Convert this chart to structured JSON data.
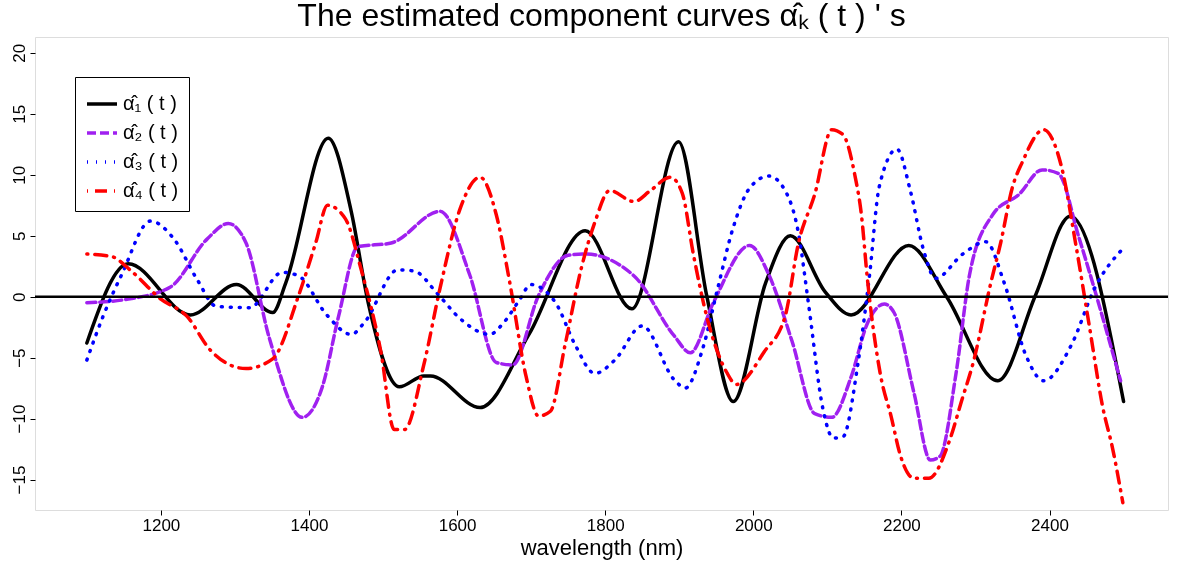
{
  "chart_data": {
    "type": "line",
    "title": "The estimated component curves α̂ₖ ( t ) ' s",
    "xlabel": "wavelength (nm)",
    "xlim": [
      1030,
      2560
    ],
    "ylim": [
      -17.5,
      21.3
    ],
    "xticks": [
      1200,
      1400,
      1600,
      1800,
      2000,
      2200,
      2400
    ],
    "yticks": [
      -15,
      -10,
      -5,
      0,
      5,
      10,
      15,
      20
    ],
    "grid": false,
    "legend": "top left",
    "marker": "none",
    "ref_lines": [
      {
        "axis": "y",
        "value": 0,
        "color": "#000000",
        "line_style": "solid"
      }
    ],
    "series": [
      {
        "name": "α̂₁ ( t )",
        "color": "#000000",
        "line_style": "solid",
        "x": [
          1100,
          1156,
          1240,
          1302,
          1351,
          1369,
          1426,
          1457,
          1480,
          1522,
          1555,
          1564,
          1631,
          1697,
          1773,
          1836,
          1899,
          1937,
          1973,
          2017,
          2050,
          2097,
          2132,
          2210,
          2261,
          2330,
          2381,
          2428,
          2500
        ],
        "values": [
          -3.8,
          2.7,
          -1.5,
          1.0,
          -1.3,
          1.2,
          13.0,
          7.0,
          -0.5,
          -7.4,
          -6.5,
          -6.5,
          -9.1,
          -3.1,
          5.4,
          -1.0,
          12.7,
          0.1,
          -8.6,
          1.2,
          5.0,
          0.4,
          -1.5,
          4.2,
          0.0,
          -6.9,
          0.1,
          6.6,
          -8.6
        ]
      },
      {
        "name": "α̂₂ ( t )",
        "color": "#a020f0",
        "line_style": "dashed",
        "x": [
          1100,
          1156,
          1213,
          1262,
          1291,
          1315,
          1346,
          1391,
          1418,
          1440,
          1466,
          1511,
          1577,
          1617,
          1653,
          1675,
          1710,
          1750,
          1773,
          1839,
          1893,
          1915,
          1946,
          1995,
          2021,
          2052,
          2083,
          2106,
          2132,
          2154,
          2177,
          2190,
          2217,
          2239,
          2252,
          2274,
          2292,
          2323,
          2359,
          2390,
          2412,
          2439,
          2496
        ],
        "values": [
          -0.5,
          -0.2,
          0.8,
          4.7,
          6.0,
          4.4,
          -3.3,
          -9.9,
          -7.4,
          -1.6,
          4.1,
          4.4,
          7.0,
          1.8,
          -5.4,
          -5.6,
          0.1,
          3.4,
          3.5,
          1.7,
          -3.2,
          -4.6,
          -0.5,
          4.2,
          1.8,
          -3.6,
          -9.6,
          -9.9,
          -6.6,
          -2.2,
          -0.6,
          -1.3,
          -7.9,
          -13.4,
          -13.1,
          -6.2,
          1.8,
          6.7,
          8.4,
          10.4,
          10.1,
          5.0,
          -6.9
        ]
      },
      {
        "name": "α̂₃ ( t )",
        "color": "#0000ff",
        "line_style": "dotted",
        "x": [
          1100,
          1122,
          1147,
          1186,
          1218,
          1249,
          1275,
          1320,
          1364,
          1386,
          1424,
          1457,
          1475,
          1520,
          1542,
          1574,
          1604,
          1644,
          1662,
          1686,
          1699,
          1733,
          1759,
          1786,
          1813,
          1850,
          1893,
          1908,
          1932,
          1952,
          1972,
          1995,
          2021,
          2043,
          2061,
          2075,
          2094,
          2108,
          2121,
          2141,
          2157,
          2170,
          2194,
          2212,
          2230,
          2246,
          2283,
          2314,
          2339,
          2368,
          2392,
          2430,
          2461,
          2500
        ],
        "values": [
          -5.2,
          -1.6,
          1.8,
          6.2,
          4.7,
          1.4,
          -0.8,
          -0.9,
          2.0,
          1.7,
          -1.5,
          -3.1,
          -2.1,
          2.2,
          2.1,
          0.2,
          -1.8,
          -3.1,
          -2.2,
          -0.1,
          1.0,
          -0.5,
          -3.9,
          -6.3,
          -5.2,
          -2.4,
          -6.8,
          -7.5,
          -4.2,
          0.7,
          5.5,
          8.9,
          9.9,
          8.7,
          5.2,
          -0.8,
          -9.2,
          -11.6,
          -11.5,
          -5.6,
          1.8,
          9.0,
          12.1,
          8.7,
          3.8,
          1.5,
          3.5,
          4.5,
          1.1,
          -4.8,
          -6.9,
          -3.9,
          0.7,
          4.0
        ]
      },
      {
        "name": "α̂₄ ( t )",
        "color": "#ff0000",
        "line_style": "dashdot",
        "x": [
          1100,
          1133,
          1160,
          1200,
          1235,
          1267,
          1287,
          1315,
          1351,
          1386,
          1409,
          1425,
          1449,
          1471,
          1497,
          1515,
          1529,
          1555,
          1577,
          1604,
          1631,
          1653,
          1671,
          1693,
          1710,
          1726,
          1746,
          1768,
          1786,
          1806,
          1839,
          1861,
          1888,
          1904,
          1919,
          1937,
          1964,
          1977,
          2015,
          2043,
          2061,
          2083,
          2106,
          2121,
          2137,
          2146,
          2154,
          2172,
          2186,
          2199,
          2217,
          2237,
          2265,
          2281,
          2297,
          2321,
          2334,
          2350,
          2363,
          2392,
          2416,
          2436,
          2454,
          2472,
          2485,
          2499
        ],
        "values": [
          3.5,
          3.3,
          2.1,
          -0.2,
          -1.6,
          -4.4,
          -5.4,
          -5.9,
          -5.1,
          0.1,
          4.4,
          7.5,
          6.4,
          2.1,
          -4.5,
          -10.9,
          -10.9,
          -5.6,
          0.7,
          7.2,
          9.8,
          6.7,
          1.2,
          -6.5,
          -9.8,
          -9.4,
          -3.9,
          2.4,
          6.1,
          8.7,
          7.8,
          8.7,
          9.8,
          8.5,
          3.5,
          -1.6,
          -6.2,
          -7.2,
          -4.5,
          -1.6,
          4.4,
          8.4,
          13.7,
          13.3,
          10.0,
          6.7,
          1.5,
          -6.5,
          -9.8,
          -13.1,
          -14.9,
          -14.9,
          -11.8,
          -8.6,
          -5.4,
          1.2,
          4.4,
          9.0,
          11.0,
          13.7,
          10.7,
          4.1,
          -2.5,
          -9.1,
          -12.4,
          -16.9
        ]
      }
    ]
  }
}
